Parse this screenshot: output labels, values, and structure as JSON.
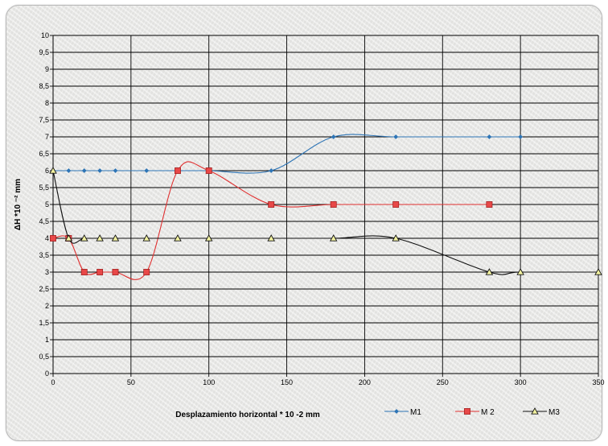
{
  "chart_data": {
    "type": "line",
    "xlabel": "Desplazamiento horizontal * 10 -2 mm",
    "ylabel": "ΔH *10 ⁻² mm",
    "xlim": [
      0,
      350
    ],
    "ylim": [
      0,
      10
    ],
    "x_ticks": [
      "0",
      "50",
      "100",
      "150",
      "200",
      "250",
      "300",
      "350"
    ],
    "y_ticks": [
      "0",
      "0,5",
      "1",
      "1,5",
      "2",
      "2,5",
      "3",
      "3,5",
      "4",
      "4,5",
      "5",
      "5,5",
      "6",
      "6,5",
      "7",
      "7,5",
      "8",
      "8,5",
      "9",
      "9,5",
      "10"
    ],
    "grid": "horizontal and vertical",
    "legend_placement": "bottom",
    "series": [
      {
        "name": "M1",
        "color": "#2e75b6",
        "marker": "diamond",
        "x": [
          0,
          10,
          20,
          30,
          40,
          60,
          80,
          100,
          140,
          180,
          220,
          280,
          300
        ],
        "y": [
          6,
          6,
          6,
          6,
          6,
          6,
          6,
          6,
          6,
          7,
          7,
          7,
          7
        ]
      },
      {
        "name": "M 2",
        "color": "#e03030",
        "marker": "square",
        "x": [
          0,
          10,
          20,
          30,
          40,
          60,
          80,
          100,
          140,
          180,
          220,
          280
        ],
        "y": [
          4,
          4,
          3,
          3,
          3,
          3,
          6,
          6,
          5,
          5,
          5,
          5
        ]
      },
      {
        "name": "M3",
        "color": "#111111",
        "marker": "triangle",
        "x": [
          0,
          10,
          20,
          30,
          40,
          60,
          80,
          100,
          140,
          180,
          220,
          280,
          300,
          350
        ],
        "y": [
          6,
          4,
          4,
          4,
          4,
          4,
          4,
          4,
          4,
          4,
          4,
          3,
          3,
          3
        ]
      }
    ]
  }
}
